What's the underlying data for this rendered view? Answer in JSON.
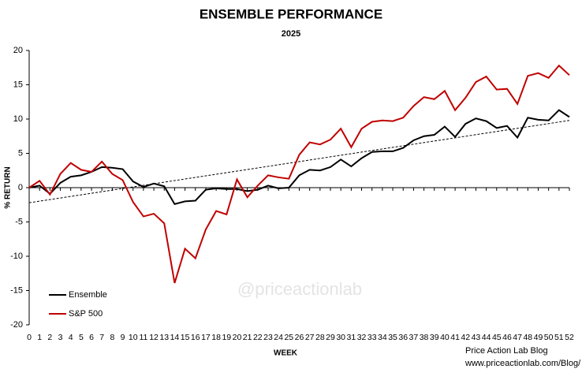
{
  "chart_data": {
    "type": "line",
    "title": "ENSEMBLE PERFORMANCE",
    "subtitle": "2025",
    "y_label": "% RETURN",
    "x_label": "WEEK",
    "watermark": "@priceactionlab",
    "footer": [
      "Price Action Lab Blog",
      "www.priceactionlab.com/Blog/"
    ],
    "x": [
      0,
      1,
      2,
      3,
      4,
      5,
      6,
      7,
      8,
      9,
      10,
      11,
      12,
      13,
      14,
      15,
      16,
      17,
      18,
      19,
      20,
      21,
      22,
      23,
      24,
      25,
      26,
      27,
      28,
      29,
      30,
      31,
      32,
      33,
      34,
      35,
      36,
      37,
      38,
      39,
      40,
      41,
      42,
      43,
      44,
      45,
      46,
      47,
      48,
      49,
      50,
      51,
      52
    ],
    "xlim": [
      0,
      52
    ],
    "xticks": [
      0,
      1,
      2,
      3,
      4,
      5,
      6,
      7,
      8,
      9,
      10,
      11,
      12,
      13,
      14,
      15,
      16,
      17,
      18,
      19,
      20,
      21,
      22,
      23,
      24,
      25,
      26,
      27,
      28,
      29,
      30,
      31,
      32,
      33,
      34,
      35,
      36,
      37,
      38,
      39,
      40,
      41,
      42,
      43,
      44,
      45,
      46,
      47,
      48,
      49,
      50,
      51,
      52
    ],
    "ylim": [
      -20,
      20
    ],
    "yticks": [
      -20,
      -15,
      -10,
      -5,
      0,
      5,
      10,
      15,
      20
    ],
    "legend": "lower left",
    "series": [
      {
        "name": "Ensemble",
        "color": "#000000",
        "values": [
          0,
          0.3,
          -0.9,
          0.7,
          1.6,
          1.8,
          2.3,
          3.0,
          2.9,
          2.7,
          0.9,
          0.1,
          0.6,
          0.2,
          -2.4,
          -2.0,
          -1.9,
          -0.3,
          -0.1,
          -0.2,
          -0.2,
          -0.5,
          -0.3,
          0.3,
          -0.1,
          0.0,
          1.8,
          2.6,
          2.5,
          3.0,
          4.1,
          3.1,
          4.3,
          5.2,
          5.3,
          5.3,
          5.8,
          6.9,
          7.5,
          7.7,
          8.9,
          7.4,
          9.3,
          10.1,
          9.7,
          8.7,
          9.0,
          7.3,
          10.2,
          9.9,
          9.8,
          11.3,
          10.3
        ]
      },
      {
        "name": "S&P 500",
        "color": "#c00000",
        "values": [
          0,
          1.0,
          -1.0,
          2.0,
          3.6,
          2.6,
          2.3,
          3.8,
          2.0,
          1.1,
          -2.1,
          -4.2,
          -3.8,
          -5.2,
          -13.9,
          -8.9,
          -10.3,
          -6.1,
          -3.4,
          -3.9,
          1.2,
          -1.4,
          0.3,
          1.8,
          1.5,
          1.3,
          4.8,
          6.6,
          6.3,
          7.0,
          8.6,
          5.9,
          8.6,
          9.6,
          9.8,
          9.7,
          10.2,
          11.9,
          13.2,
          12.9,
          14.1,
          11.3,
          13.1,
          15.4,
          16.2,
          14.3,
          14.4,
          12.2,
          16.3,
          16.7,
          16.0,
          17.8,
          16.4
        ]
      }
    ],
    "trend": {
      "x": [
        0,
        52
      ],
      "values": [
        -2.2,
        9.8
      ],
      "color": "#000000"
    }
  }
}
